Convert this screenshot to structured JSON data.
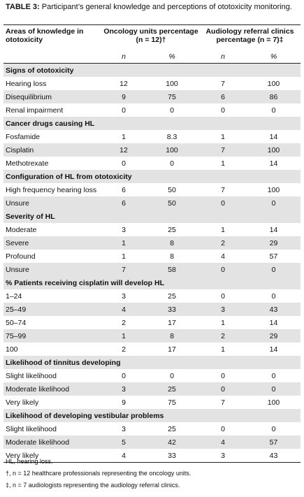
{
  "caption": {
    "prefix": "TABLE 3:",
    "text": " Participant’s general knowledge and perceptions of ototoxicity monitoring."
  },
  "headers": {
    "area": "Areas of knowledge in ototoxicity",
    "oncology": "Oncology units percentage (n = 12)†",
    "audiology": "Audiology referral clinics percentage (n = 7)‡",
    "n": "n",
    "pct": "%"
  },
  "sections": [
    {
      "title": "Signs of ototoxicity",
      "rows": [
        {
          "label": "Hearing loss",
          "onc_n": "12",
          "onc_pct": "100",
          "aud_n": "7",
          "aud_pct": "100"
        },
        {
          "label": "Disequilibrium",
          "onc_n": "9",
          "onc_pct": "75",
          "aud_n": "6",
          "aud_pct": "86"
        },
        {
          "label": "Renal impairment",
          "onc_n": "0",
          "onc_pct": "0",
          "aud_n": "0",
          "aud_pct": "0"
        }
      ]
    },
    {
      "title": "Cancer drugs causing HL",
      "rows": [
        {
          "label": "Fosfamide",
          "onc_n": "1",
          "onc_pct": "8.3",
          "aud_n": "1",
          "aud_pct": "14"
        },
        {
          "label": "Cisplatin",
          "onc_n": "12",
          "onc_pct": "100",
          "aud_n": "7",
          "aud_pct": "100"
        },
        {
          "label": "Methotrexate",
          "onc_n": "0",
          "onc_pct": "0",
          "aud_n": "1",
          "aud_pct": "14"
        }
      ]
    },
    {
      "title": "Configuration of HL from ototoxicity",
      "rows": [
        {
          "label": "High frequency hearing loss",
          "onc_n": "6",
          "onc_pct": "50",
          "aud_n": "7",
          "aud_pct": "100"
        },
        {
          "label": "Unsure",
          "onc_n": "6",
          "onc_pct": "50",
          "aud_n": "0",
          "aud_pct": "0"
        }
      ]
    },
    {
      "title": "Severity of HL",
      "rows": [
        {
          "label": "Moderate",
          "onc_n": "3",
          "onc_pct": "25",
          "aud_n": "1",
          "aud_pct": "14"
        },
        {
          "label": "Severe",
          "onc_n": "1",
          "onc_pct": "8",
          "aud_n": "2",
          "aud_pct": "29"
        },
        {
          "label": "Profound",
          "onc_n": "1",
          "onc_pct": "8",
          "aud_n": "4",
          "aud_pct": "57"
        },
        {
          "label": "Unsure",
          "onc_n": "7",
          "onc_pct": "58",
          "aud_n": "0",
          "aud_pct": "0"
        }
      ]
    },
    {
      "title": "% Patients receiving cisplatin will develop HL",
      "rows": [
        {
          "label": "1–24",
          "onc_n": "3",
          "onc_pct": "25",
          "aud_n": "0",
          "aud_pct": "0"
        },
        {
          "label": "25–49",
          "onc_n": "4",
          "onc_pct": "33",
          "aud_n": "3",
          "aud_pct": "43"
        },
        {
          "label": "50–74",
          "onc_n": "2",
          "onc_pct": "17",
          "aud_n": "1",
          "aud_pct": "14"
        },
        {
          "label": "75–99",
          "onc_n": "1",
          "onc_pct": "8",
          "aud_n": "2",
          "aud_pct": "29"
        },
        {
          "label": "100",
          "onc_n": "2",
          "onc_pct": "17",
          "aud_n": "1",
          "aud_pct": "14"
        }
      ]
    },
    {
      "title": "Likelihood of tinnitus developing",
      "rows": [
        {
          "label": "Slight likelihood",
          "onc_n": "0",
          "onc_pct": "0",
          "aud_n": "0",
          "aud_pct": "0"
        },
        {
          "label": "Moderate likelihood",
          "onc_n": "3",
          "onc_pct": "25",
          "aud_n": "0",
          "aud_pct": "0"
        },
        {
          "label": "Very likely",
          "onc_n": "9",
          "onc_pct": "75",
          "aud_n": "7",
          "aud_pct": "100"
        }
      ]
    },
    {
      "title": "Likelihood of developing vestibular problems",
      "rows": [
        {
          "label": "Slight likelihood",
          "onc_n": "3",
          "onc_pct": "25",
          "aud_n": "0",
          "aud_pct": "0"
        },
        {
          "label": "Moderate likelihood",
          "onc_n": "5",
          "onc_pct": "42",
          "aud_n": "4",
          "aud_pct": "57"
        },
        {
          "label": "Very likely",
          "onc_n": "4",
          "onc_pct": "33",
          "aud_n": "3",
          "aud_pct": "43"
        }
      ]
    }
  ],
  "footnotes": [
    "HL, hearing loss.",
    "†, n = 12 healthcare professionals representing the oncology units.",
    "‡, n = 7 audiologists representing the audiology referral clinics."
  ]
}
